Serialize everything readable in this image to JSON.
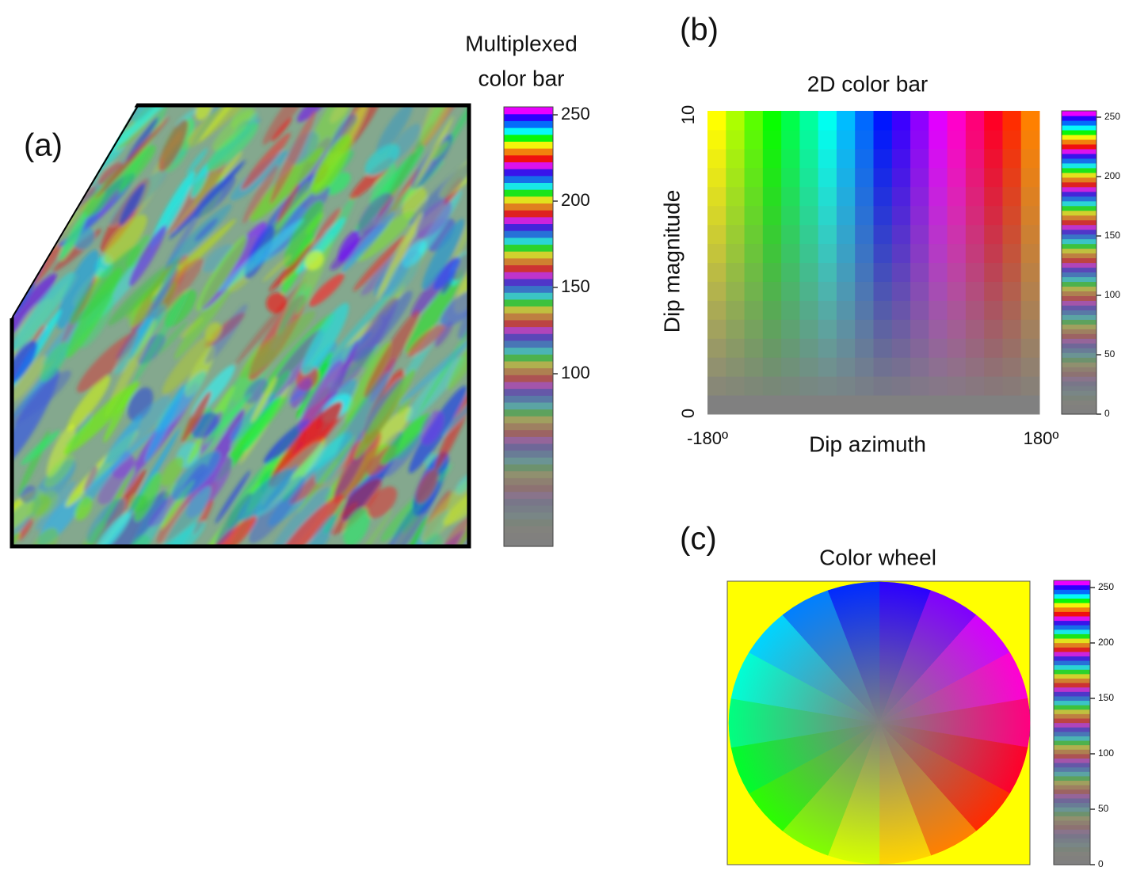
{
  "panel_a": {
    "label": "(a)",
    "colorbar": {
      "title": [
        "Multiplexed",
        "color bar"
      ],
      "ticks": [
        250,
        200,
        150,
        100
      ]
    }
  },
  "panel_b": {
    "label": "(b)",
    "title": "2D color bar",
    "y_axis": {
      "label": "Dip magnitude",
      "ticks": [
        10,
        0
      ]
    },
    "x_axis": {
      "label": "Dip azimuth",
      "ticks": [
        "-180º",
        "180º"
      ]
    },
    "colorbar": {
      "ticks": [
        250,
        200,
        150,
        100,
        50,
        0
      ]
    }
  },
  "panel_c": {
    "label": "(c)",
    "title": "Color wheel",
    "colorbar": {
      "ticks": [
        250,
        200,
        150,
        100,
        50,
        0
      ]
    }
  }
}
